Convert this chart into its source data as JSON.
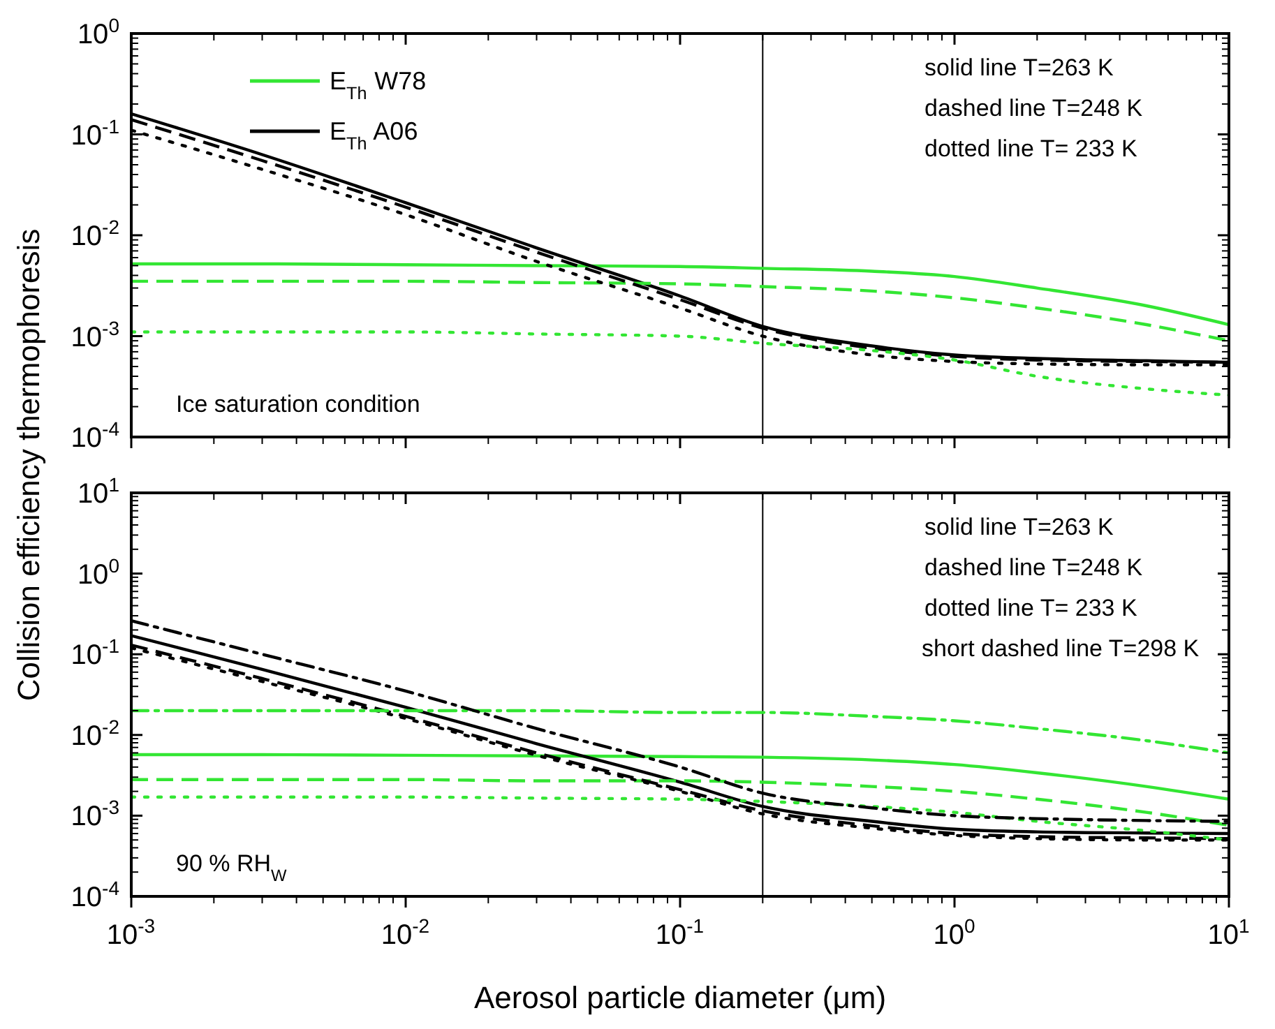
{
  "chart_data": [
    {
      "type": "line",
      "ylabel": "Collision efficiency thermophoresis",
      "xlim": [
        0.001,
        10
      ],
      "ylim": [
        0.0001,
        1
      ],
      "log": "xy",
      "tick_labels": "y",
      "legend": "top left",
      "grid": false,
      "xticks": [
        {
          "value": 0.001,
          "label": null
        },
        {
          "value": 0.01,
          "label": null
        },
        {
          "value": 0.1,
          "label": null
        },
        {
          "value": 1,
          "label": null
        },
        {
          "value": 10,
          "label": null
        }
      ],
      "yticks": [
        {
          "value": 0.0001,
          "label": "10$^{-4}$"
        },
        {
          "value": 0.001,
          "label": "10$^{-3}$"
        },
        {
          "value": 0.01,
          "label": "10$^{-2}$"
        },
        {
          "value": 0.1,
          "label": "10$^{-1}$"
        },
        {
          "value": 1,
          "label": "10$^{0}$"
        }
      ],
      "x": [
        0.001,
        0.003,
        0.01,
        0.03,
        0.1,
        0.2,
        0.5,
        1,
        2,
        5,
        10
      ],
      "ref_lines": [
        {
          "axis": "x",
          "value": 0.2,
          "color": "#000000"
        }
      ],
      "annotations": [
        "solid line T=263 K",
        "dashed line T=248 K",
        "dotted line T= 233 K",
        "Ice saturation condition"
      ],
      "series": [
        {
          "name": "E$_{Th}$ W78",
          "color": "#33e633",
          "line_style": "solid",
          "values": [
            0.0052,
            0.0052,
            0.0051,
            0.005,
            0.0049,
            0.0047,
            0.0044,
            0.0039,
            0.003,
            0.002,
            0.0013
          ]
        },
        {
          "name": "E$_{Th}$ A06",
          "color": "#000000",
          "line_style": "solid",
          "values": [
            0.16,
            0.063,
            0.021,
            0.0075,
            0.0025,
            0.00125,
            0.0008,
            0.00065,
            0.0006,
            0.00057,
            0.00055
          ]
        },
        {
          "color": "#33e633",
          "line_style": "dashed",
          "values": [
            0.0035,
            0.0035,
            0.0035,
            0.0034,
            0.0033,
            0.0031,
            0.0028,
            0.0024,
            0.0019,
            0.0013,
            0.0009
          ]
        },
        {
          "color": "#000000",
          "line_style": "dashed",
          "values": [
            0.14,
            0.055,
            0.019,
            0.0068,
            0.0023,
            0.0012,
            0.00076,
            0.00063,
            0.00058,
            0.00056,
            0.00055
          ]
        },
        {
          "color": "#33e633",
          "line_style": "dotted",
          "values": [
            0.0011,
            0.0011,
            0.0011,
            0.00105,
            0.001,
            0.00085,
            0.00072,
            0.00058,
            0.0004,
            0.0003,
            0.00026
          ]
        },
        {
          "color": "#000000",
          "line_style": "dotted",
          "values": [
            0.11,
            0.045,
            0.016,
            0.0055,
            0.0019,
            0.001,
            0.00065,
            0.00056,
            0.00053,
            0.00052,
            0.00052
          ]
        }
      ]
    },
    {
      "type": "line",
      "xlabel": "Aerosol particle diameter (μm)",
      "xlim": [
        0.001,
        10
      ],
      "ylim": [
        0.0001,
        10
      ],
      "log": "xy",
      "grid": false,
      "xticks": [
        {
          "value": 0.001,
          "label": "10$^{-3}$"
        },
        {
          "value": 0.01,
          "label": "10$^{-2}$"
        },
        {
          "value": 0.1,
          "label": "10$^{-1}$"
        },
        {
          "value": 1,
          "label": "10$^{0}$"
        },
        {
          "value": 10,
          "label": "10$^{1}$"
        }
      ],
      "yticks": [
        {
          "value": 0.0001,
          "label": "10$^{-4}$"
        },
        {
          "value": 0.001,
          "label": "10$^{-3}$"
        },
        {
          "value": 0.01,
          "label": "10$^{-2}$"
        },
        {
          "value": 0.1,
          "label": "10$^{-1}$"
        },
        {
          "value": 1,
          "label": "10$^{0}$"
        },
        {
          "value": 10,
          "label": "10$^{1}$"
        }
      ],
      "x": [
        0.001,
        0.003,
        0.01,
        0.03,
        0.1,
        0.2,
        0.5,
        1,
        2,
        5,
        10
      ],
      "ref_lines": [
        {
          "axis": "x",
          "value": 0.2,
          "color": "#000000"
        }
      ],
      "annotations": [
        "solid line T=263 K",
        "dashed line T=248 K",
        "dotted line T= 233 K",
        "short dashed line T=298 K",
        "90 % RH$_{W}$"
      ],
      "series": [
        {
          "color": "#33e633",
          "line_style": "solid",
          "values": [
            0.0057,
            0.0057,
            0.0056,
            0.0055,
            0.0054,
            0.0053,
            0.0049,
            0.0043,
            0.0034,
            0.0023,
            0.0016
          ]
        },
        {
          "color": "#000000",
          "line_style": "solid",
          "values": [
            0.17,
            0.065,
            0.022,
            0.0078,
            0.0026,
            0.0013,
            0.00085,
            0.00068,
            0.00063,
            0.00061,
            0.0006
          ]
        },
        {
          "color": "#33e633",
          "line_style": "dashed",
          "values": [
            0.0028,
            0.0028,
            0.0028,
            0.0027,
            0.0027,
            0.0026,
            0.0023,
            0.002,
            0.0016,
            0.0011,
            0.00076
          ]
        },
        {
          "color": "#000000",
          "line_style": "dashed",
          "values": [
            0.13,
            0.05,
            0.017,
            0.006,
            0.0021,
            0.00115,
            0.00075,
            0.0006,
            0.00055,
            0.00053,
            0.00052
          ]
        },
        {
          "color": "#33e633",
          "line_style": "dotted",
          "values": [
            0.0017,
            0.0017,
            0.0017,
            0.00165,
            0.0016,
            0.0015,
            0.0013,
            0.0011,
            0.00085,
            0.00065,
            0.0005
          ]
        },
        {
          "color": "#000000",
          "line_style": "dotted",
          "values": [
            0.12,
            0.046,
            0.016,
            0.0056,
            0.002,
            0.00105,
            0.0007,
            0.00057,
            0.00052,
            0.0005,
            0.0005
          ]
        },
        {
          "color": "#33e633",
          "line_style": "dashdot",
          "values": [
            0.02,
            0.02,
            0.02,
            0.02,
            0.019,
            0.019,
            0.017,
            0.015,
            0.012,
            0.0085,
            0.006
          ]
        },
        {
          "color": "#000000",
          "line_style": "dashdot",
          "values": [
            0.26,
            0.1,
            0.035,
            0.012,
            0.004,
            0.0019,
            0.00125,
            0.001,
            0.00092,
            0.00087,
            0.00085
          ]
        }
      ]
    }
  ]
}
